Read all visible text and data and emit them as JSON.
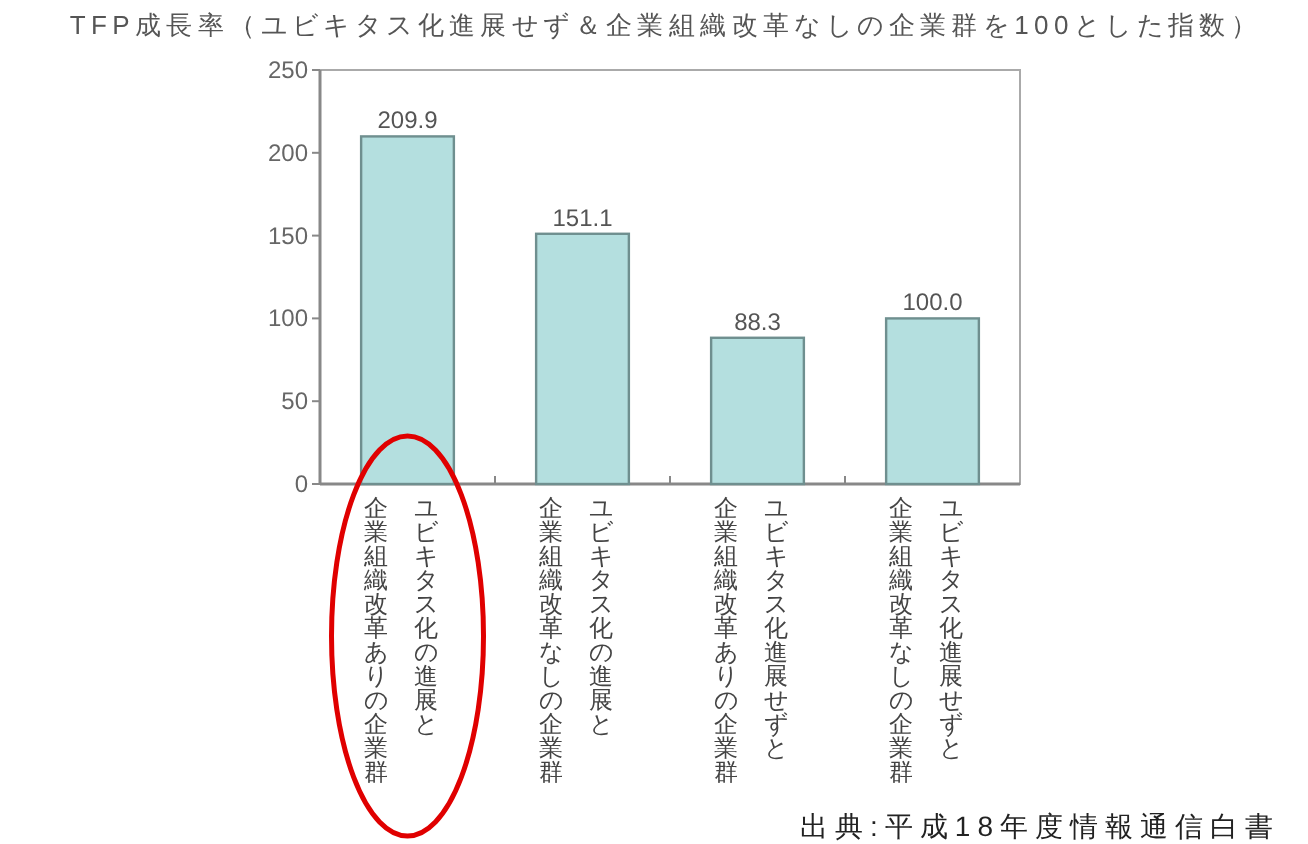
{
  "chart_data": {
    "type": "bar",
    "title": "TFP成長率（ユビキタス化進展せず＆企業組織改革なしの企業群を100とした指数）",
    "categories": [
      "ユビキタス化の進展と企業組織改革ありの企業群",
      "ユビキタス化の進展と企業組織改革なしの企業群",
      "ユビキタス化進展せずと企業組織改革ありの企業群",
      "ユビキタス化進展せずと企業組織改革なしの企業群"
    ],
    "values": [
      209.9,
      151.1,
      88.3,
      100.0
    ],
    "value_labels": [
      "209.9",
      "151.1",
      "88.3",
      "100.0"
    ],
    "color": "#b4dfdf",
    "ylim": [
      0,
      250
    ],
    "yticks": [
      0,
      50,
      100,
      150,
      200,
      250
    ],
    "annotations": [
      "出典:平成18年度情報通信白書"
    ]
  }
}
